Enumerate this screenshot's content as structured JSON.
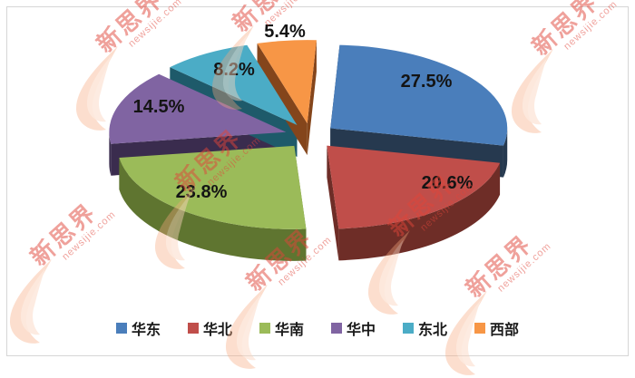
{
  "chart_data": {
    "type": "pie",
    "style": "3d-exploded",
    "labels": [
      "华东",
      "华北",
      "华南",
      "华中",
      "东北",
      "西部"
    ],
    "values": [
      27.5,
      20.6,
      23.8,
      14.5,
      8.2,
      5.4
    ],
    "value_labels": [
      "27.5%",
      "20.6%",
      "23.8%",
      "14.5%",
      "8.2%",
      "5.4%"
    ],
    "colors": [
      "#4A7EBB",
      "#C04E4A",
      "#9BBB59",
      "#8064A2",
      "#4BACC6",
      "#F79646"
    ],
    "side_colors": [
      "#26394F",
      "#6E2D27",
      "#5F7530",
      "#3A2C4E",
      "#1E5A6A",
      "#84451B"
    ],
    "legend_position": "bottom",
    "start_angle_deg": 3,
    "title": ""
  },
  "legend": {
    "items": [
      {
        "label": "华东",
        "color": "#4A7EBB"
      },
      {
        "label": "华北",
        "color": "#C04E4A"
      },
      {
        "label": "华南",
        "color": "#9BBB59"
      },
      {
        "label": "华中",
        "color": "#8064A2"
      },
      {
        "label": "东北",
        "color": "#4BACC6"
      },
      {
        "label": "西部",
        "color": "#F79646"
      }
    ]
  },
  "watermark": {
    "brand": "新思界",
    "domain": "newsijie.com",
    "text_color": "#E0453A",
    "flame_color": "#F5A87E"
  },
  "frame": {
    "border_color": "#D6D6D6"
  }
}
